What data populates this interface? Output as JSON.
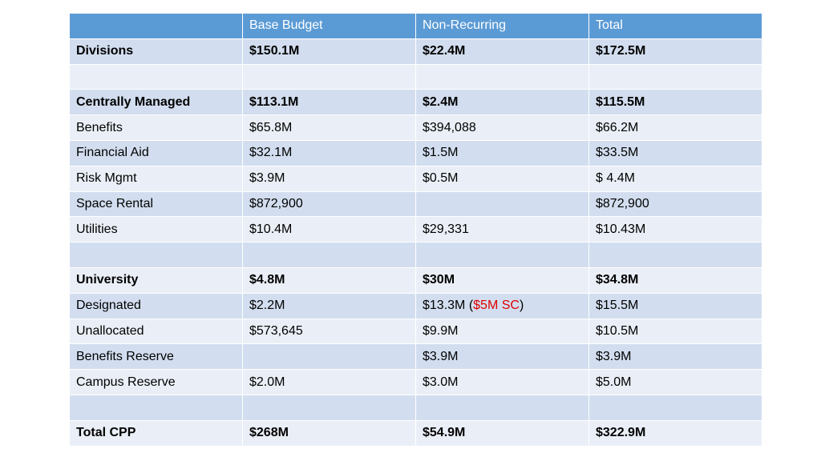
{
  "header": {
    "col0": "",
    "col1": "Base Budget",
    "col2": "Non-Recurring",
    "col3": "Total"
  },
  "rows": [
    {
      "label": "Divisions",
      "base": "$150.1M",
      "nonrec": "$22.4M",
      "total": "$172.5M"
    },
    {
      "label": "",
      "base": "",
      "nonrec": "",
      "total": ""
    },
    {
      "label": "Centrally Managed",
      "base": "$113.1M",
      "nonrec": "$2.4M",
      "total": "$115.5M"
    },
    {
      "label": "Benefits",
      "base": "$65.8M",
      "nonrec": "$394,088",
      "total": "$66.2M"
    },
    {
      "label": "Financial Aid",
      "base": "$32.1M",
      "nonrec": "$1.5M",
      "total": "$33.5M"
    },
    {
      "label": "Risk Mgmt",
      "base": "$3.9M",
      "nonrec": "$0.5M",
      "total": "$ 4.4M"
    },
    {
      "label": "Space Rental",
      "base": "$872,900",
      "nonrec": "",
      "total": "$872,900"
    },
    {
      "label": "Utilities",
      "base": "$10.4M",
      "nonrec": "$29,331",
      "total": "$10.43M"
    },
    {
      "label": "",
      "base": "",
      "nonrec": "",
      "total": ""
    },
    {
      "label": "University",
      "base": "$4.8M",
      "nonrec": "$30M",
      "total": "$34.8M"
    },
    {
      "label": "Designated",
      "base": "$2.2M",
      "nonrec_main": "$13.3M (",
      "nonrec_red": "$5M SC",
      "nonrec_end": ")",
      "total": "$15.5M"
    },
    {
      "label": "Unallocated",
      "base": "$573,645",
      "nonrec": "$9.9M",
      "total": "$10.5M"
    },
    {
      "label": "Benefits Reserve",
      "base": "",
      "nonrec": "$3.9M",
      "total": "$3.9M"
    },
    {
      "label": "Campus Reserve",
      "base": "$2.0M",
      "nonrec": "$3.0M",
      "total": "$5.0M"
    },
    {
      "label": "",
      "base": "",
      "nonrec": "",
      "total": ""
    },
    {
      "label": "Total CPP",
      "base": "$268M",
      "nonrec": "$54.9M",
      "total": "$322.9M"
    }
  ],
  "colors": {
    "header_bg": "#5b9bd5",
    "row_dark": "#d2deef",
    "row_light": "#eaeff7",
    "highlight_red": "#e00000"
  }
}
